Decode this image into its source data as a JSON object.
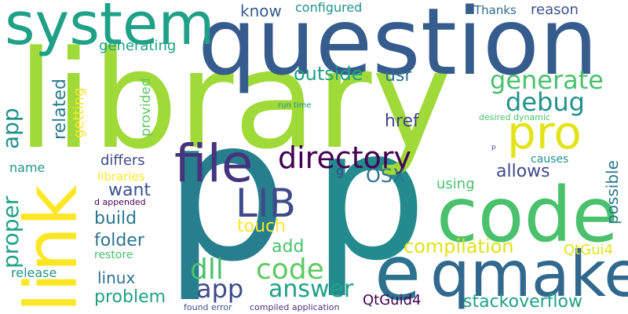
{
  "palette": {
    "dark_purple": "#440154",
    "indigo": "#46337e",
    "blue": "#365c8d",
    "teal_blue": "#277f8e",
    "teal": "#1fa187",
    "green": "#4ac16d",
    "lime": "#a0da39",
    "yellow": "#fde725"
  },
  "words": {
    "p_big": "p",
    "p_second": "p",
    "library": "library",
    "question": "question",
    "system": "system",
    "code_big": "code",
    "qmake": "qmake",
    "link": "link",
    "e": "e",
    "file": "file",
    "pro": "pro",
    "directory": "directory",
    "lib": "LIB",
    "generate": "generate",
    "debug": "debug",
    "dll": "dll",
    "code_small": "code",
    "answer": "answer",
    "app_bottom": "app",
    "app_left": "app",
    "proper": "proper",
    "related": "related",
    "getting": "getting",
    "provided": "provided",
    "outside": "outside",
    "usr": "usr",
    "href": "href",
    "osx": "OSX",
    "allows": "allows",
    "possible": "possible",
    "causes": "causes",
    "compilation": "compilation",
    "qtgui4": "QtGui4",
    "qtguid4": "QtGuid4",
    "stackoverflow": "stackoverflow",
    "know": "know",
    "configured": "configured",
    "thanks": "Thanks",
    "reason": "reason",
    "generating": "generating",
    "build": "build",
    "want": "want",
    "libraries": "libraries",
    "differs": "differs",
    "name": "name",
    "folder": "folder",
    "restore": "restore",
    "release": "release",
    "linux": "linux",
    "problem": "problem",
    "touch": "touch",
    "add": "add",
    "using": "using",
    "g": "g",
    "d_appended": "d appended",
    "run_time": "run time",
    "desired_dynamic": "desired dynamic",
    "p_tiny": "p",
    "found_error": "found error",
    "compiled_application": "compiled application"
  }
}
